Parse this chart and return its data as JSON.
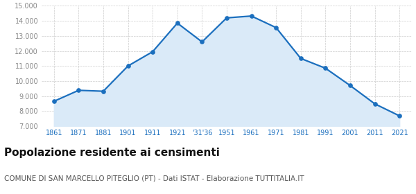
{
  "x_labels": [
    "1861",
    "1871",
    "1881",
    "1901",
    "1911",
    "1921",
    "'31'36",
    "1951",
    "1961",
    "1971",
    "1981",
    "1991",
    "2001",
    "2011",
    "2021"
  ],
  "population": [
    8650,
    9380,
    9320,
    11000,
    11950,
    13850,
    12600,
    14200,
    14320,
    13550,
    11500,
    10850,
    9700,
    8480,
    7680
  ],
  "ylim": [
    7000,
    15000
  ],
  "yticks": [
    7000,
    8000,
    9000,
    10000,
    11000,
    12000,
    13000,
    14000,
    15000
  ],
  "line_color": "#1b6fbe",
  "fill_color": "#daeaf8",
  "marker_color": "#1b6fbe",
  "grid_color": "#cccccc",
  "bg_color": "#ffffff",
  "title": "Popolazione residente ai censimenti",
  "subtitle": "COMUNE DI SAN MARCELLO PITEGLIO (PT) - Dati ISTAT - Elaborazione TUTTITALIA.IT",
  "title_fontsize": 11,
  "subtitle_fontsize": 7.5,
  "tick_label_color": "#1b6fbe",
  "ytick_label_color": "#888888"
}
